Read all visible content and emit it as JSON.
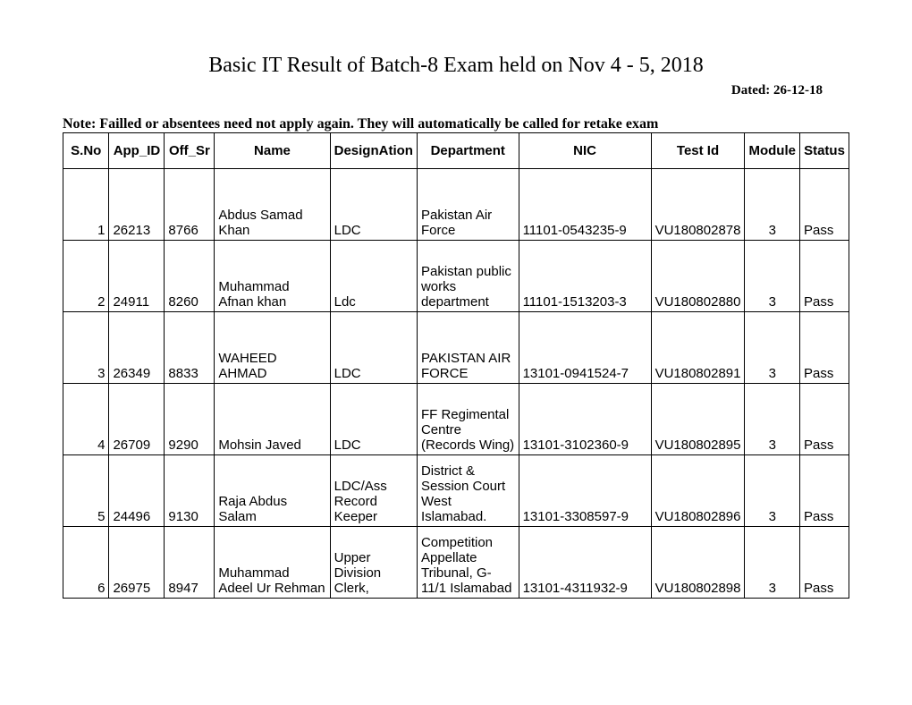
{
  "title": "Basic IT Result of Batch-8 Exam held on Nov 4 - 5, 2018",
  "dated": "Dated: 26-12-18",
  "note": "Note: Failled or absentees need not apply again. They will automatically be called for retake exam",
  "table": {
    "columns": [
      "S.No",
      "App_ID",
      "Off_Sr",
      "Name",
      "DesignAtion",
      "Department",
      "NIC",
      "Test Id",
      "Module",
      "Status"
    ],
    "rows": [
      {
        "sno": "1",
        "appid": "26213",
        "offsr": "8766",
        "name": "Abdus Samad Khan",
        "desig": "LDC",
        "dept": "Pakistan Air Force",
        "nic": "11101-0543235-9",
        "testid": "VU180802878",
        "module": "3",
        "status": "Pass"
      },
      {
        "sno": "2",
        "appid": "24911",
        "offsr": "8260",
        "name": "Muhammad Afnan khan",
        "desig": "Ldc",
        "dept": "Pakistan public works department",
        "nic": "11101-1513203-3",
        "testid": "VU180802880",
        "module": "3",
        "status": "Pass"
      },
      {
        "sno": "3",
        "appid": "26349",
        "offsr": "8833",
        "name": "WAHEED AHMAD",
        "desig": "LDC",
        "dept": "PAKISTAN AIR FORCE",
        "nic": "13101-0941524-7",
        "testid": "VU180802891",
        "module": "3",
        "status": "Pass"
      },
      {
        "sno": "4",
        "appid": "26709",
        "offsr": "9290",
        "name": "Mohsin Javed",
        "desig": "LDC",
        "dept": "FF Regimental Centre (Records Wing)",
        "nic": "13101-3102360-9",
        "testid": "VU180802895",
        "module": "3",
        "status": "Pass"
      },
      {
        "sno": "5",
        "appid": "24496",
        "offsr": "9130",
        "name": "Raja Abdus Salam",
        "desig": "LDC/Ass Record Keeper",
        "dept": "District & Session Court West Islamabad.",
        "nic": "13101-3308597-9",
        "testid": "VU180802896",
        "module": "3",
        "status": "Pass"
      },
      {
        "sno": "6",
        "appid": "26975",
        "offsr": "8947",
        "name": "Muhammad Adeel Ur Rehman",
        "desig": "Upper Division Clerk,",
        "dept": "Competition Appellate Tribunal, G-11/1 Islamabad",
        "nic": "13101-4311932-9",
        "testid": "VU180802898",
        "module": "3",
        "status": "Pass"
      }
    ]
  }
}
